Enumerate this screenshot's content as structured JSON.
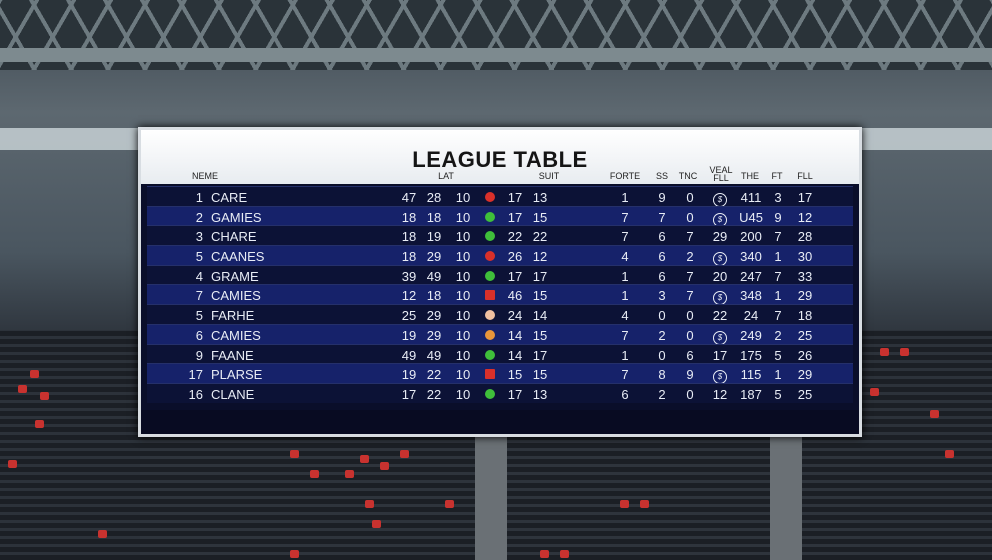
{
  "title": "LEAGUE TABLE",
  "headers": [
    "NEME",
    "LAT",
    "SUIT",
    "FORTE",
    "SS",
    "TNC",
    "VEAL FLL",
    "THE",
    "FT",
    "FLL"
  ],
  "rows": [
    {
      "rank": "1",
      "name": "CARE",
      "a": "47",
      "b": "28",
      "c": "10",
      "status": "#d9302a",
      "status_shape": "circle",
      "d": "17",
      "e": "13",
      "f": "1",
      "g": "9",
      "h": "0",
      "veal": "",
      "the": "411",
      "ft": "3",
      "fll": "17"
    },
    {
      "rank": "2",
      "name": "GAMIES",
      "a": "18",
      "b": "18",
      "c": "10",
      "status": "#3fbf3a",
      "status_shape": "circle",
      "d": "17",
      "e": "15",
      "f": "7",
      "g": "7",
      "h": "0",
      "veal": "",
      "the": "U45",
      "ft": "9",
      "fll": "12"
    },
    {
      "rank": "3",
      "name": "CHARE",
      "a": "18",
      "b": "19",
      "c": "10",
      "status": "#3fbf3a",
      "status_shape": "circle",
      "d": "22",
      "e": "22",
      "f": "7",
      "g": "6",
      "h": "7",
      "veal": "29",
      "the": "200",
      "ft": "7",
      "fll": "28"
    },
    {
      "rank": "5",
      "name": "CAANES",
      "a": "18",
      "b": "29",
      "c": "10",
      "status": "#d9302a",
      "status_shape": "circle",
      "d": "26",
      "e": "12",
      "f": "4",
      "g": "6",
      "h": "2",
      "veal": "",
      "the": "340",
      "ft": "1",
      "fll": "30"
    },
    {
      "rank": "4",
      "name": "GRAME",
      "a": "39",
      "b": "49",
      "c": "10",
      "status": "#3fbf3a",
      "status_shape": "circle",
      "d": "17",
      "e": "17",
      "f": "1",
      "g": "6",
      "h": "7",
      "veal": "20",
      "the": "247",
      "ft": "7",
      "fll": "33"
    },
    {
      "rank": "7",
      "name": "CAMIES",
      "a": "12",
      "b": "18",
      "c": "10",
      "status": "#d9302a",
      "status_shape": "square",
      "d": "46",
      "e": "15",
      "f": "1",
      "g": "3",
      "h": "7",
      "veal": "",
      "the": "348",
      "ft": "1",
      "fll": "29"
    },
    {
      "rank": "5",
      "name": "FARHE",
      "a": "25",
      "b": "29",
      "c": "10",
      "status": "#f0c0a0",
      "status_shape": "circle",
      "d": "24",
      "e": "14",
      "f": "4",
      "g": "0",
      "h": "0",
      "veal": "22",
      "the": "24",
      "ft": "7",
      "fll": "18"
    },
    {
      "rank": "6",
      "name": "CAMIES",
      "a": "19",
      "b": "29",
      "c": "10",
      "status": "#e8963a",
      "status_shape": "circle",
      "d": "14",
      "e": "15",
      "f": "7",
      "g": "2",
      "h": "0",
      "veal": "",
      "the": "249",
      "ft": "2",
      "fll": "25"
    },
    {
      "rank": "9",
      "name": "FAANE",
      "a": "49",
      "b": "49",
      "c": "10",
      "status": "#3fbf3a",
      "status_shape": "circle",
      "d": "14",
      "e": "17",
      "f": "1",
      "g": "0",
      "h": "6",
      "veal": "17",
      "the": "175",
      "ft": "5",
      "fll": "26"
    },
    {
      "rank": "17",
      "name": "PLARSE",
      "a": "19",
      "b": "22",
      "c": "10",
      "status": "#d9302a",
      "status_shape": "square",
      "d": "15",
      "e": "15",
      "f": "7",
      "g": "8",
      "h": "9",
      "veal": "",
      "the": "115",
      "ft": "1",
      "fll": "29"
    },
    {
      "rank": "16",
      "name": "CLANE",
      "a": "17",
      "b": "22",
      "c": "10",
      "status": "#3fbf3a",
      "status_shape": "circle",
      "d": "17",
      "e": "13",
      "f": "6",
      "g": "2",
      "h": "0",
      "veal": "12",
      "the": "187",
      "ft": "5",
      "fll": "25"
    }
  ]
}
